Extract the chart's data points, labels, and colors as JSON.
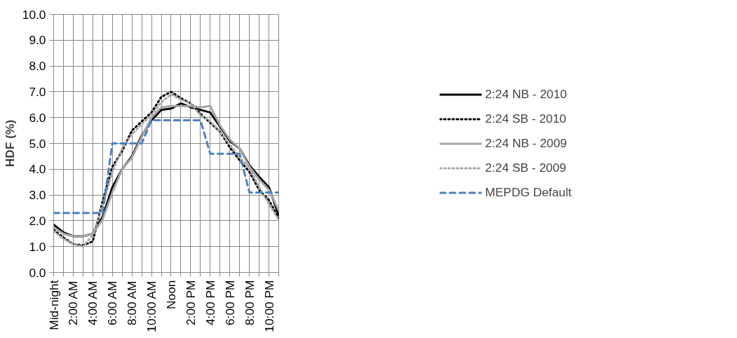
{
  "chart_data": {
    "type": "line",
    "ylabel": "HDF (%)",
    "categories": [
      "Mid-night",
      null,
      "2:00 AM",
      null,
      "4:00 AM",
      null,
      "6:00 AM",
      null,
      "8:00 AM",
      null,
      "10:00 AM",
      null,
      "Noon",
      null,
      "2:00 PM",
      null,
      "4:00 PM",
      null,
      "6:00 PM",
      null,
      "8:00 PM",
      null,
      "10:00 PM",
      null
    ],
    "series": [
      {
        "name": "2:24 NB - 2010",
        "color": "#000000",
        "line_style": "solid",
        "values": [
          1.85,
          1.55,
          1.4,
          1.4,
          1.5,
          2.15,
          3.3,
          4.0,
          4.5,
          5.3,
          5.9,
          6.3,
          6.35,
          6.55,
          6.4,
          6.3,
          6.2,
          5.65,
          5.1,
          4.8,
          4.15,
          3.7,
          3.3,
          2.2
        ]
      },
      {
        "name": "2:24 SB - 2010",
        "color": "#000000",
        "line_style": "dotted",
        "values": [
          1.65,
          1.35,
          1.1,
          1.05,
          1.2,
          2.75,
          4.1,
          4.7,
          5.5,
          5.85,
          6.2,
          6.8,
          7.0,
          6.75,
          6.55,
          6.15,
          5.8,
          5.45,
          4.85,
          4.35,
          3.9,
          3.2,
          2.8,
          2.1
        ]
      },
      {
        "name": "2:24 NB - 2009",
        "color": "#a6a6a6",
        "line_style": "solid",
        "values": [
          1.75,
          1.5,
          1.4,
          1.4,
          1.5,
          2.05,
          3.1,
          4.0,
          4.45,
          5.25,
          6.0,
          6.4,
          6.45,
          6.45,
          6.45,
          6.4,
          6.45,
          5.7,
          5.15,
          4.8,
          4.1,
          3.6,
          3.2,
          2.4
        ]
      },
      {
        "name": "2:24 SB - 2009",
        "color": "#a6a6a6",
        "line_style": "dotted",
        "values": [
          1.6,
          1.3,
          1.1,
          1.0,
          1.45,
          2.6,
          3.9,
          4.8,
          5.35,
          5.75,
          6.1,
          6.6,
          6.9,
          6.7,
          6.55,
          6.1,
          5.85,
          5.45,
          4.95,
          4.45,
          4.05,
          3.3,
          2.65,
          2.05
        ]
      },
      {
        "name": "MEPDG Default",
        "color": "#4f81bd",
        "line_style": "dashed",
        "values": [
          2.3,
          2.3,
          2.3,
          2.3,
          2.3,
          2.3,
          5.0,
          5.0,
          5.0,
          5.0,
          5.9,
          5.9,
          5.9,
          5.9,
          5.9,
          5.9,
          4.6,
          4.6,
          4.6,
          4.6,
          3.1,
          3.1,
          3.1,
          3.1
        ]
      }
    ],
    "ylim": [
      0,
      10
    ],
    "yticks": [
      {
        "value": 0,
        "label": "0.0"
      },
      {
        "value": 1,
        "label": "1.0"
      },
      {
        "value": 2,
        "label": "2.0"
      },
      {
        "value": 3,
        "label": "3.0"
      },
      {
        "value": 4,
        "label": "4.0"
      },
      {
        "value": 5,
        "label": "5.0"
      },
      {
        "value": 6,
        "label": "6.0"
      },
      {
        "value": 7,
        "label": "7.0"
      },
      {
        "value": 8,
        "label": "8.0"
      },
      {
        "value": 9,
        "label": "9.0"
      },
      {
        "value": 10,
        "label": "10.0"
      }
    ],
    "grid": true,
    "legend": "right",
    "marker": "none"
  }
}
